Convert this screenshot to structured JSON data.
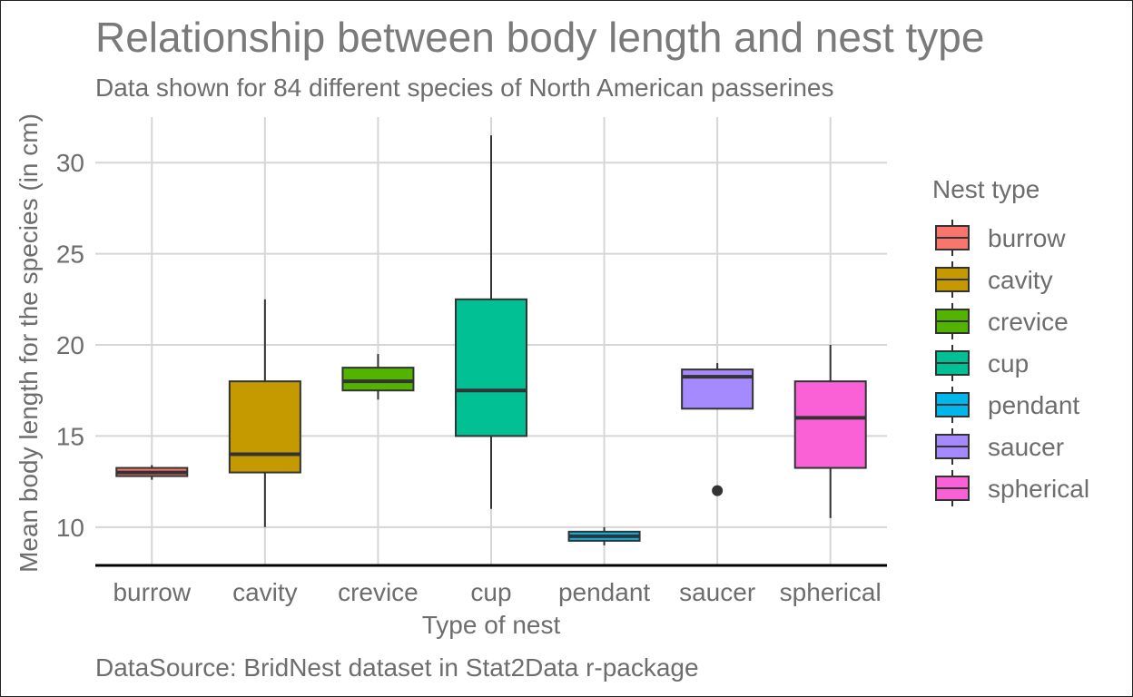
{
  "chart_data": {
    "type": "box",
    "title": "Relationship between body length and nest type",
    "subtitle": "Data shown for 84 different species of North American passerines",
    "caption": "DataSource: BridNest dataset in Stat2Data r-package",
    "xlabel": "Type of nest",
    "ylabel": "Mean body length for the species (in cm)",
    "ylim": [
      7.9,
      32.5
    ],
    "yticks": [
      10,
      15,
      20,
      25,
      30
    ],
    "grid": true,
    "legend": {
      "title": "Nest type",
      "position": "right"
    },
    "categories": [
      "burrow",
      "cavity",
      "crevice",
      "cup",
      "pendant",
      "saucer",
      "spherical"
    ],
    "boxes": [
      {
        "category": "burrow",
        "color": "#F8766D",
        "whisker_low": 12.6,
        "q1": 12.8,
        "median": 13.0,
        "q3": 13.25,
        "whisker_high": 13.4,
        "outliers": []
      },
      {
        "category": "cavity",
        "color": "#C49A00",
        "whisker_low": 10.0,
        "q1": 13.0,
        "median": 14.0,
        "q3": 18.0,
        "whisker_high": 22.5,
        "outliers": []
      },
      {
        "category": "crevice",
        "color": "#53B400",
        "whisker_low": 17.0,
        "q1": 17.5,
        "median": 18.0,
        "q3": 18.75,
        "whisker_high": 19.5,
        "outliers": []
      },
      {
        "category": "cup",
        "color": "#00C094",
        "whisker_low": 11.0,
        "q1": 15.0,
        "median": 17.5,
        "q3": 22.5,
        "whisker_high": 31.5,
        "outliers": []
      },
      {
        "category": "pendant",
        "color": "#00B6EB",
        "whisker_low": 9.0,
        "q1": 9.25,
        "median": 9.5,
        "q3": 9.75,
        "whisker_high": 10.0,
        "outliers": []
      },
      {
        "category": "saucer",
        "color": "#A58AFF",
        "whisker_low": 16.5,
        "q1": 16.5,
        "median": 18.25,
        "q3": 18.65,
        "whisker_high": 19.0,
        "outliers": [
          12.0
        ]
      },
      {
        "category": "spherical",
        "color": "#FB61D7",
        "whisker_low": 10.5,
        "q1": 13.25,
        "median": 16.0,
        "q3": 18.0,
        "whisker_high": 20.0,
        "outliers": []
      }
    ]
  }
}
